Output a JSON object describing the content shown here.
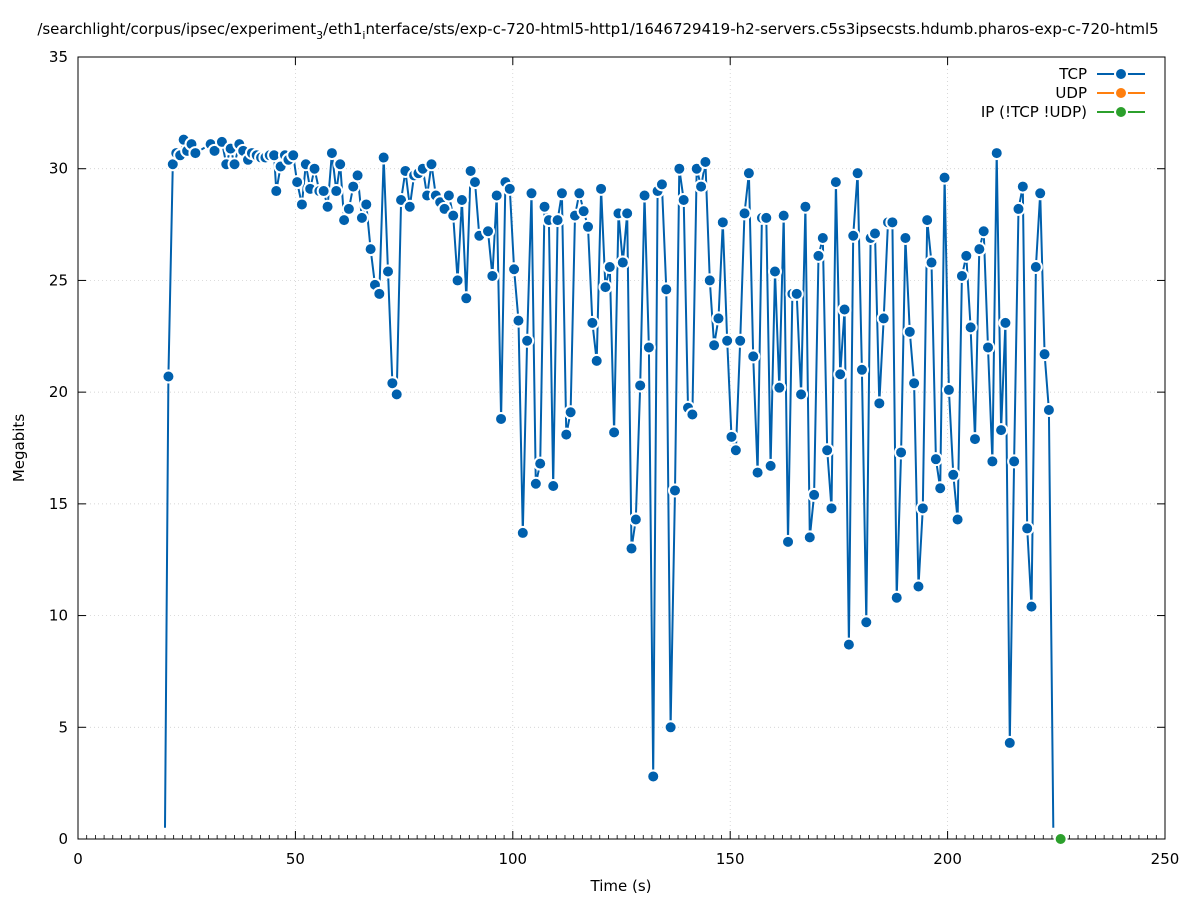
{
  "chart_data": {
    "type": "line",
    "title": "/searchlight/corpus/ipsec/experiment",
    "title_sub": "3",
    "title_mid": "/eth1",
    "title_sub2": "i",
    "title_rest": "nterface/sts/exp-c-720-html5-http1/1646729419-h2-servers.c5s3ipsecsts.hdumb.pharos-exp-c-720-html5",
    "xlabel": "Time (s)",
    "ylabel": "Megabits",
    "xlim": [
      0,
      250
    ],
    "ylim": [
      0,
      35
    ],
    "x_ticks": [
      "0",
      "50",
      "100",
      "150",
      "200",
      "250"
    ],
    "y_ticks": [
      "0",
      "5",
      "10",
      "15",
      "20",
      "25",
      "30",
      "35"
    ],
    "grid": true,
    "legend_position": "top-right",
    "series": [
      {
        "name": "TCP",
        "color": "#0060ad",
        "points": [
          [
            20,
            0.5
          ],
          [
            20.8,
            20.7
          ],
          [
            21.8,
            30.2
          ],
          [
            22.6,
            30.7
          ],
          [
            23.5,
            30.6
          ],
          [
            24.3,
            31.3
          ],
          [
            25.1,
            30.8
          ],
          [
            26.1,
            31.1
          ],
          [
            27,
            30.7
          ],
          [
            30.5,
            31.1
          ],
          [
            31.4,
            30.8
          ],
          [
            33.1,
            31.2
          ],
          [
            34.1,
            30.2
          ],
          [
            35.1,
            30.9
          ],
          [
            36,
            30.2
          ],
          [
            37.1,
            31.1
          ],
          [
            38,
            30.8
          ],
          [
            39.1,
            30.4
          ],
          [
            40,
            30.7
          ],
          [
            41.1,
            30.6
          ],
          [
            42.1,
            30.5
          ],
          [
            43.1,
            30.5
          ],
          [
            44.1,
            30.6
          ],
          [
            45.1,
            30.6
          ],
          [
            45.6,
            29
          ],
          [
            46.6,
            30.1
          ],
          [
            47.6,
            30.6
          ],
          [
            48.4,
            30.4
          ],
          [
            49.5,
            30.6
          ],
          [
            50.4,
            29.4
          ],
          [
            51.5,
            28.4
          ],
          [
            52.4,
            30.2
          ],
          [
            53.4,
            29.1
          ],
          [
            54.4,
            30
          ],
          [
            55.5,
            29
          ],
          [
            56.5,
            29
          ],
          [
            57.4,
            28.3
          ],
          [
            58.4,
            30.7
          ],
          [
            59.4,
            29
          ],
          [
            60.3,
            30.2
          ],
          [
            61.2,
            27.7
          ],
          [
            62.3,
            28.2
          ],
          [
            63.3,
            29.2
          ],
          [
            64.3,
            29.7
          ],
          [
            65.3,
            27.8
          ],
          [
            66.3,
            28.4
          ],
          [
            67.3,
            26.4
          ],
          [
            68.3,
            24.8
          ],
          [
            69.3,
            24.4
          ],
          [
            70.3,
            30.5
          ],
          [
            71.3,
            25.4
          ],
          [
            72.3,
            20.4
          ],
          [
            73.3,
            19.9
          ],
          [
            74.3,
            28.6
          ],
          [
            75.3,
            29.9
          ],
          [
            76.3,
            28.3
          ],
          [
            77.3,
            29.7
          ],
          [
            78.3,
            29.8
          ],
          [
            79.3,
            30
          ],
          [
            80.3,
            28.8
          ],
          [
            81.3,
            30.2
          ],
          [
            82.3,
            28.8
          ],
          [
            83.3,
            28.5
          ],
          [
            84.3,
            28.2
          ],
          [
            85.3,
            28.8
          ],
          [
            86.3,
            27.9
          ],
          [
            87.3,
            25
          ],
          [
            88.3,
            28.6
          ],
          [
            89.3,
            24.2
          ],
          [
            90.3,
            29.9
          ],
          [
            91.3,
            29.4
          ],
          [
            92.3,
            27
          ],
          [
            94.3,
            27.2
          ],
          [
            95.3,
            25.2
          ],
          [
            96.3,
            28.8
          ],
          [
            97.3,
            18.8
          ],
          [
            98.3,
            29.4
          ],
          [
            99.3,
            29.1
          ],
          [
            100.3,
            25.5
          ],
          [
            101.3,
            23.2
          ],
          [
            102.3,
            13.7
          ],
          [
            103.3,
            22.3
          ],
          [
            104.3,
            28.9
          ],
          [
            105.3,
            15.9
          ],
          [
            106.3,
            16.8
          ],
          [
            107.3,
            28.3
          ],
          [
            108.3,
            27.7
          ],
          [
            109.3,
            15.8
          ],
          [
            110.3,
            27.7
          ],
          [
            111.3,
            28.9
          ],
          [
            112.3,
            18.1
          ],
          [
            113.3,
            19.1
          ],
          [
            114.3,
            27.9
          ],
          [
            115.3,
            28.9
          ],
          [
            116.3,
            28.1
          ],
          [
            117.3,
            27.4
          ],
          [
            118.3,
            23.1
          ],
          [
            119.3,
            21.4
          ],
          [
            120.3,
            29.1
          ],
          [
            121.3,
            24.7
          ],
          [
            122.3,
            25.6
          ],
          [
            123.3,
            18.2
          ],
          [
            124.3,
            28
          ],
          [
            125.3,
            25.8
          ],
          [
            126.3,
            28
          ],
          [
            127.3,
            13
          ],
          [
            128.3,
            14.3
          ],
          [
            129.3,
            20.3
          ],
          [
            130.3,
            28.8
          ],
          [
            131.3,
            22
          ],
          [
            132.3,
            2.8
          ],
          [
            133.3,
            29
          ],
          [
            134.3,
            29.3
          ],
          [
            135.3,
            24.6
          ],
          [
            136.3,
            5
          ],
          [
            137.3,
            15.6
          ],
          [
            138.3,
            30
          ],
          [
            139.3,
            28.6
          ],
          [
            140.3,
            19.3
          ],
          [
            141.3,
            19
          ],
          [
            142.3,
            30
          ],
          [
            143.3,
            29.2
          ],
          [
            144.3,
            30.3
          ],
          [
            145.3,
            25
          ],
          [
            146.3,
            22.1
          ],
          [
            147.3,
            23.3
          ],
          [
            148.3,
            27.6
          ],
          [
            149.3,
            22.3
          ],
          [
            150.3,
            18
          ],
          [
            151.3,
            17.4
          ],
          [
            152.3,
            22.3
          ],
          [
            153.3,
            28
          ],
          [
            154.3,
            29.8
          ],
          [
            155.3,
            21.6
          ],
          [
            156.3,
            16.4
          ],
          [
            157.3,
            27.8
          ],
          [
            158.3,
            27.8
          ],
          [
            159.3,
            16.7
          ],
          [
            160.3,
            25.4
          ],
          [
            161.3,
            20.2
          ],
          [
            162.3,
            27.9
          ],
          [
            163.3,
            13.3
          ],
          [
            164.3,
            24.4
          ],
          [
            165.3,
            24.4
          ],
          [
            166.3,
            19.9
          ],
          [
            167.3,
            28.3
          ],
          [
            168.3,
            13.5
          ],
          [
            169.3,
            15.4
          ],
          [
            170.3,
            26.1
          ],
          [
            171.3,
            26.9
          ],
          [
            172.3,
            17.4
          ],
          [
            173.3,
            14.8
          ],
          [
            174.3,
            29.4
          ],
          [
            175.3,
            20.8
          ],
          [
            176.3,
            23.7
          ],
          [
            177.3,
            8.7
          ],
          [
            178.3,
            27
          ],
          [
            179.3,
            29.8
          ],
          [
            180.3,
            21
          ],
          [
            181.3,
            9.7
          ],
          [
            182.3,
            26.9
          ],
          [
            183.3,
            27.1
          ],
          [
            184.3,
            19.5
          ],
          [
            185.3,
            23.3
          ],
          [
            186.3,
            27.6
          ],
          [
            187.3,
            27.6
          ],
          [
            188.3,
            10.8
          ],
          [
            189.3,
            17.3
          ],
          [
            190.3,
            26.9
          ],
          [
            191.3,
            22.7
          ],
          [
            192.3,
            20.4
          ],
          [
            193.3,
            11.3
          ],
          [
            194.3,
            14.8
          ],
          [
            195.3,
            27.7
          ],
          [
            196.3,
            25.8
          ],
          [
            197.3,
            17
          ],
          [
            198.3,
            15.7
          ],
          [
            199.3,
            29.6
          ],
          [
            200.3,
            20.1
          ],
          [
            201.3,
            16.3
          ],
          [
            202.3,
            14.3
          ],
          [
            203.3,
            25.2
          ],
          [
            204.3,
            26.1
          ],
          [
            205.3,
            22.9
          ],
          [
            206.3,
            17.9
          ],
          [
            207.3,
            26.4
          ],
          [
            208.3,
            27.2
          ],
          [
            209.3,
            22
          ],
          [
            210.3,
            16.9
          ],
          [
            211.3,
            30.7
          ],
          [
            212.3,
            18.3
          ],
          [
            213.3,
            23.1
          ],
          [
            214.3,
            4.3
          ],
          [
            215.3,
            16.9
          ],
          [
            216.3,
            28.2
          ],
          [
            217.3,
            29.2
          ],
          [
            218.3,
            13.9
          ],
          [
            219.3,
            10.4
          ],
          [
            220.3,
            25.6
          ],
          [
            221.3,
            28.9
          ],
          [
            222.3,
            21.7
          ],
          [
            223.3,
            19.2
          ],
          [
            224.3,
            0.5
          ]
        ]
      },
      {
        "name": "UDP",
        "color": "#ff7f0e",
        "points": []
      },
      {
        "name": "IP (!TCP  !UDP)",
        "color": "#2ca02c",
        "points": [
          [
            226,
            0
          ]
        ]
      }
    ]
  }
}
